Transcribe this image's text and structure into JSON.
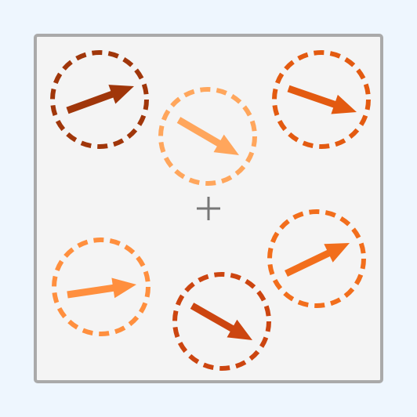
{
  "colors": {
    "page_background": "#eef6fe",
    "board_fill": "#f4f4f4",
    "board_border": "#aaaaaa",
    "center_marker": "#777777"
  },
  "center_marker": {
    "icon": "crosshair-plus-icon"
  },
  "dials": [
    {
      "id": "dial-1",
      "color": "#a0360a",
      "arrow_direction": "up-right"
    },
    {
      "id": "dial-2",
      "color": "#ffa65c",
      "arrow_direction": "down-right"
    },
    {
      "id": "dial-3",
      "color": "#e35a10",
      "arrow_direction": "down-right"
    },
    {
      "id": "dial-4",
      "color": "#ff8f3e",
      "arrow_direction": "right"
    },
    {
      "id": "dial-5",
      "color": "#cc4510",
      "arrow_direction": "down-right"
    },
    {
      "id": "dial-6",
      "color": "#f26e1c",
      "arrow_direction": "up-right"
    }
  ]
}
